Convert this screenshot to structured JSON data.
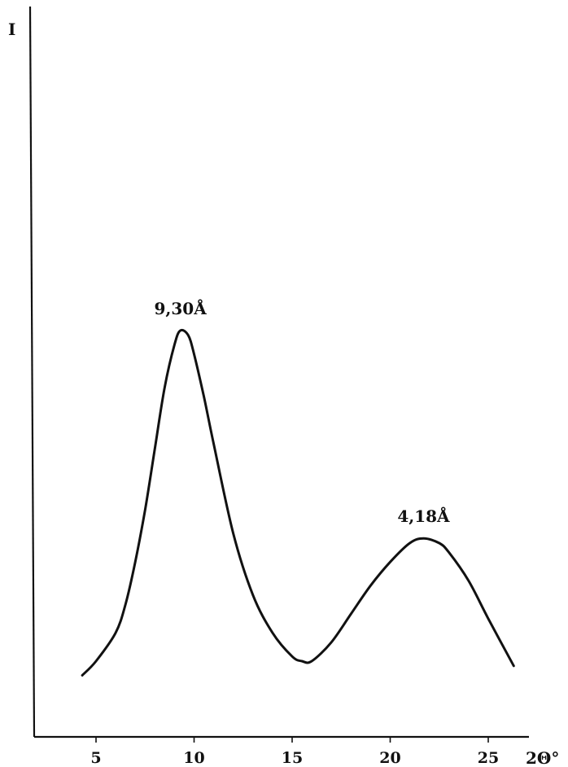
{
  "chart_data": {
    "type": "line",
    "xlabel": "2Θ°",
    "ylabel": "I",
    "x_ticks": [
      5,
      10,
      15,
      20,
      25
    ],
    "xlim": [
      2,
      28
    ],
    "ylim": [
      0,
      100
    ],
    "grid": false,
    "y_tick_labels": false,
    "series": [
      {
        "x": [
          4.3,
          5,
          6,
          6.5,
          7,
          7.5,
          8,
          8.5,
          9,
          9.3,
          9.7,
          10,
          10.5,
          11,
          12,
          13,
          14,
          15,
          15.5,
          16,
          17,
          18,
          19,
          20,
          21,
          21.7,
          22.5,
          23,
          24,
          25,
          26.3
        ],
        "y": [
          7,
          10,
          16,
          22,
          31,
          42,
          55,
          68,
          77,
          80,
          79,
          75,
          66,
          56,
          37,
          24,
          16,
          11,
          10,
          10,
          14,
          20,
          26,
          31,
          35,
          36,
          35,
          33,
          27,
          19,
          9
        ]
      }
    ],
    "annotations": [
      {
        "text": "9,30Å",
        "x": 9.3,
        "y": 80
      },
      {
        "text": "4,18Å",
        "x": 21.7,
        "y": 36
      }
    ]
  }
}
